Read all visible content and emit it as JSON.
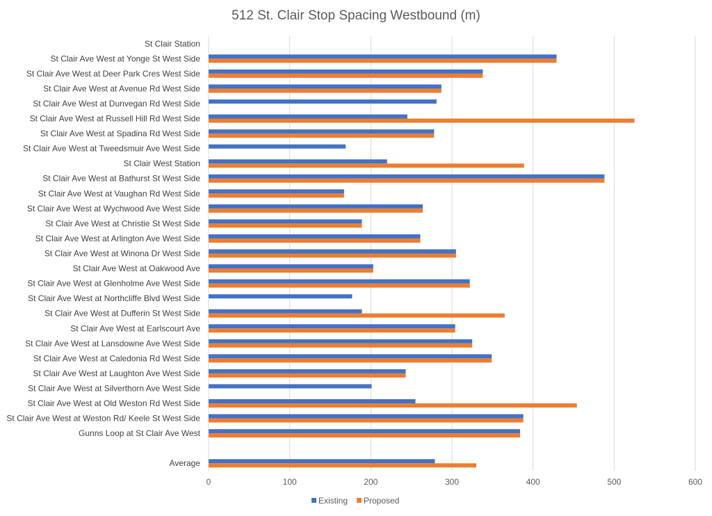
{
  "chart_data": {
    "type": "bar",
    "orientation": "horizontal",
    "title": "512 St. Clair Stop Spacing Westbound (m)",
    "xlabel": "",
    "ylabel": "",
    "xlim": [
      0,
      600
    ],
    "xticks": [
      0,
      100,
      200,
      300,
      400,
      500,
      600
    ],
    "grid": true,
    "legend": "bottom",
    "categories": [
      "St Clair Station",
      "St Clair Ave West at Yonge St West Side",
      "St Clair Ave West at Deer Park Cres West Side",
      "St Clair Ave West at Avenue Rd West Side",
      "St Clair Ave West at Dunvegan Rd West Side",
      "St Clair Ave West at Russell Hill Rd West Side",
      "St Clair Ave West at Spadina Rd West Side",
      "St Clair Ave West at Tweedsmuir Ave West Side",
      "St Clair West Station",
      "St Clair Ave West at Bathurst St West Side",
      "St Clair Ave West at Vaughan Rd West Side",
      "St Clair Ave West at Wychwood Ave West Side",
      "St Clair Ave West at Christie St West Side",
      "St Clair Ave West at Arlington Ave West Side",
      "St Clair Ave West at Winona Dr West Side",
      "St Clair Ave West at Oakwood Ave",
      "St Clair Ave West at Glenholme Ave West Side",
      "St Clair Ave West at Northcliffe Blvd West Side",
      "St Clair Ave West at Dufferin St West Side",
      "St Clair Ave West at Earlscourt Ave",
      "St Clair Ave West at Lansdowne Ave West Side",
      "St Clair Ave West at Caledonia Rd West Side",
      "St Clair Ave West at Laughton Ave West Side",
      "St Clair Ave West at Silverthorn Ave West Side",
      "St Clair Ave West at Old Weston Rd West Side",
      "St Clair Ave West at Weston Rd/ Keele St West Side",
      "Gunns Loop at St Clair Ave West",
      "",
      "Average"
    ],
    "series": [
      {
        "name": "Existing",
        "color": "#4472C4",
        "values": [
          null,
          429,
          338,
          287,
          281,
          245,
          278,
          169,
          220,
          488,
          167,
          264,
          189,
          261,
          305,
          203,
          322,
          177,
          189,
          304,
          325,
          349,
          243,
          201,
          255,
          388,
          384,
          null,
          279
        ]
      },
      {
        "name": "Proposed",
        "color": "#ED7D31",
        "values": [
          null,
          429,
          338,
          287,
          null,
          525,
          278,
          null,
          389,
          488,
          167,
          264,
          189,
          261,
          305,
          203,
          322,
          null,
          365,
          304,
          325,
          349,
          243,
          null,
          454,
          388,
          384,
          null,
          330
        ]
      }
    ]
  }
}
